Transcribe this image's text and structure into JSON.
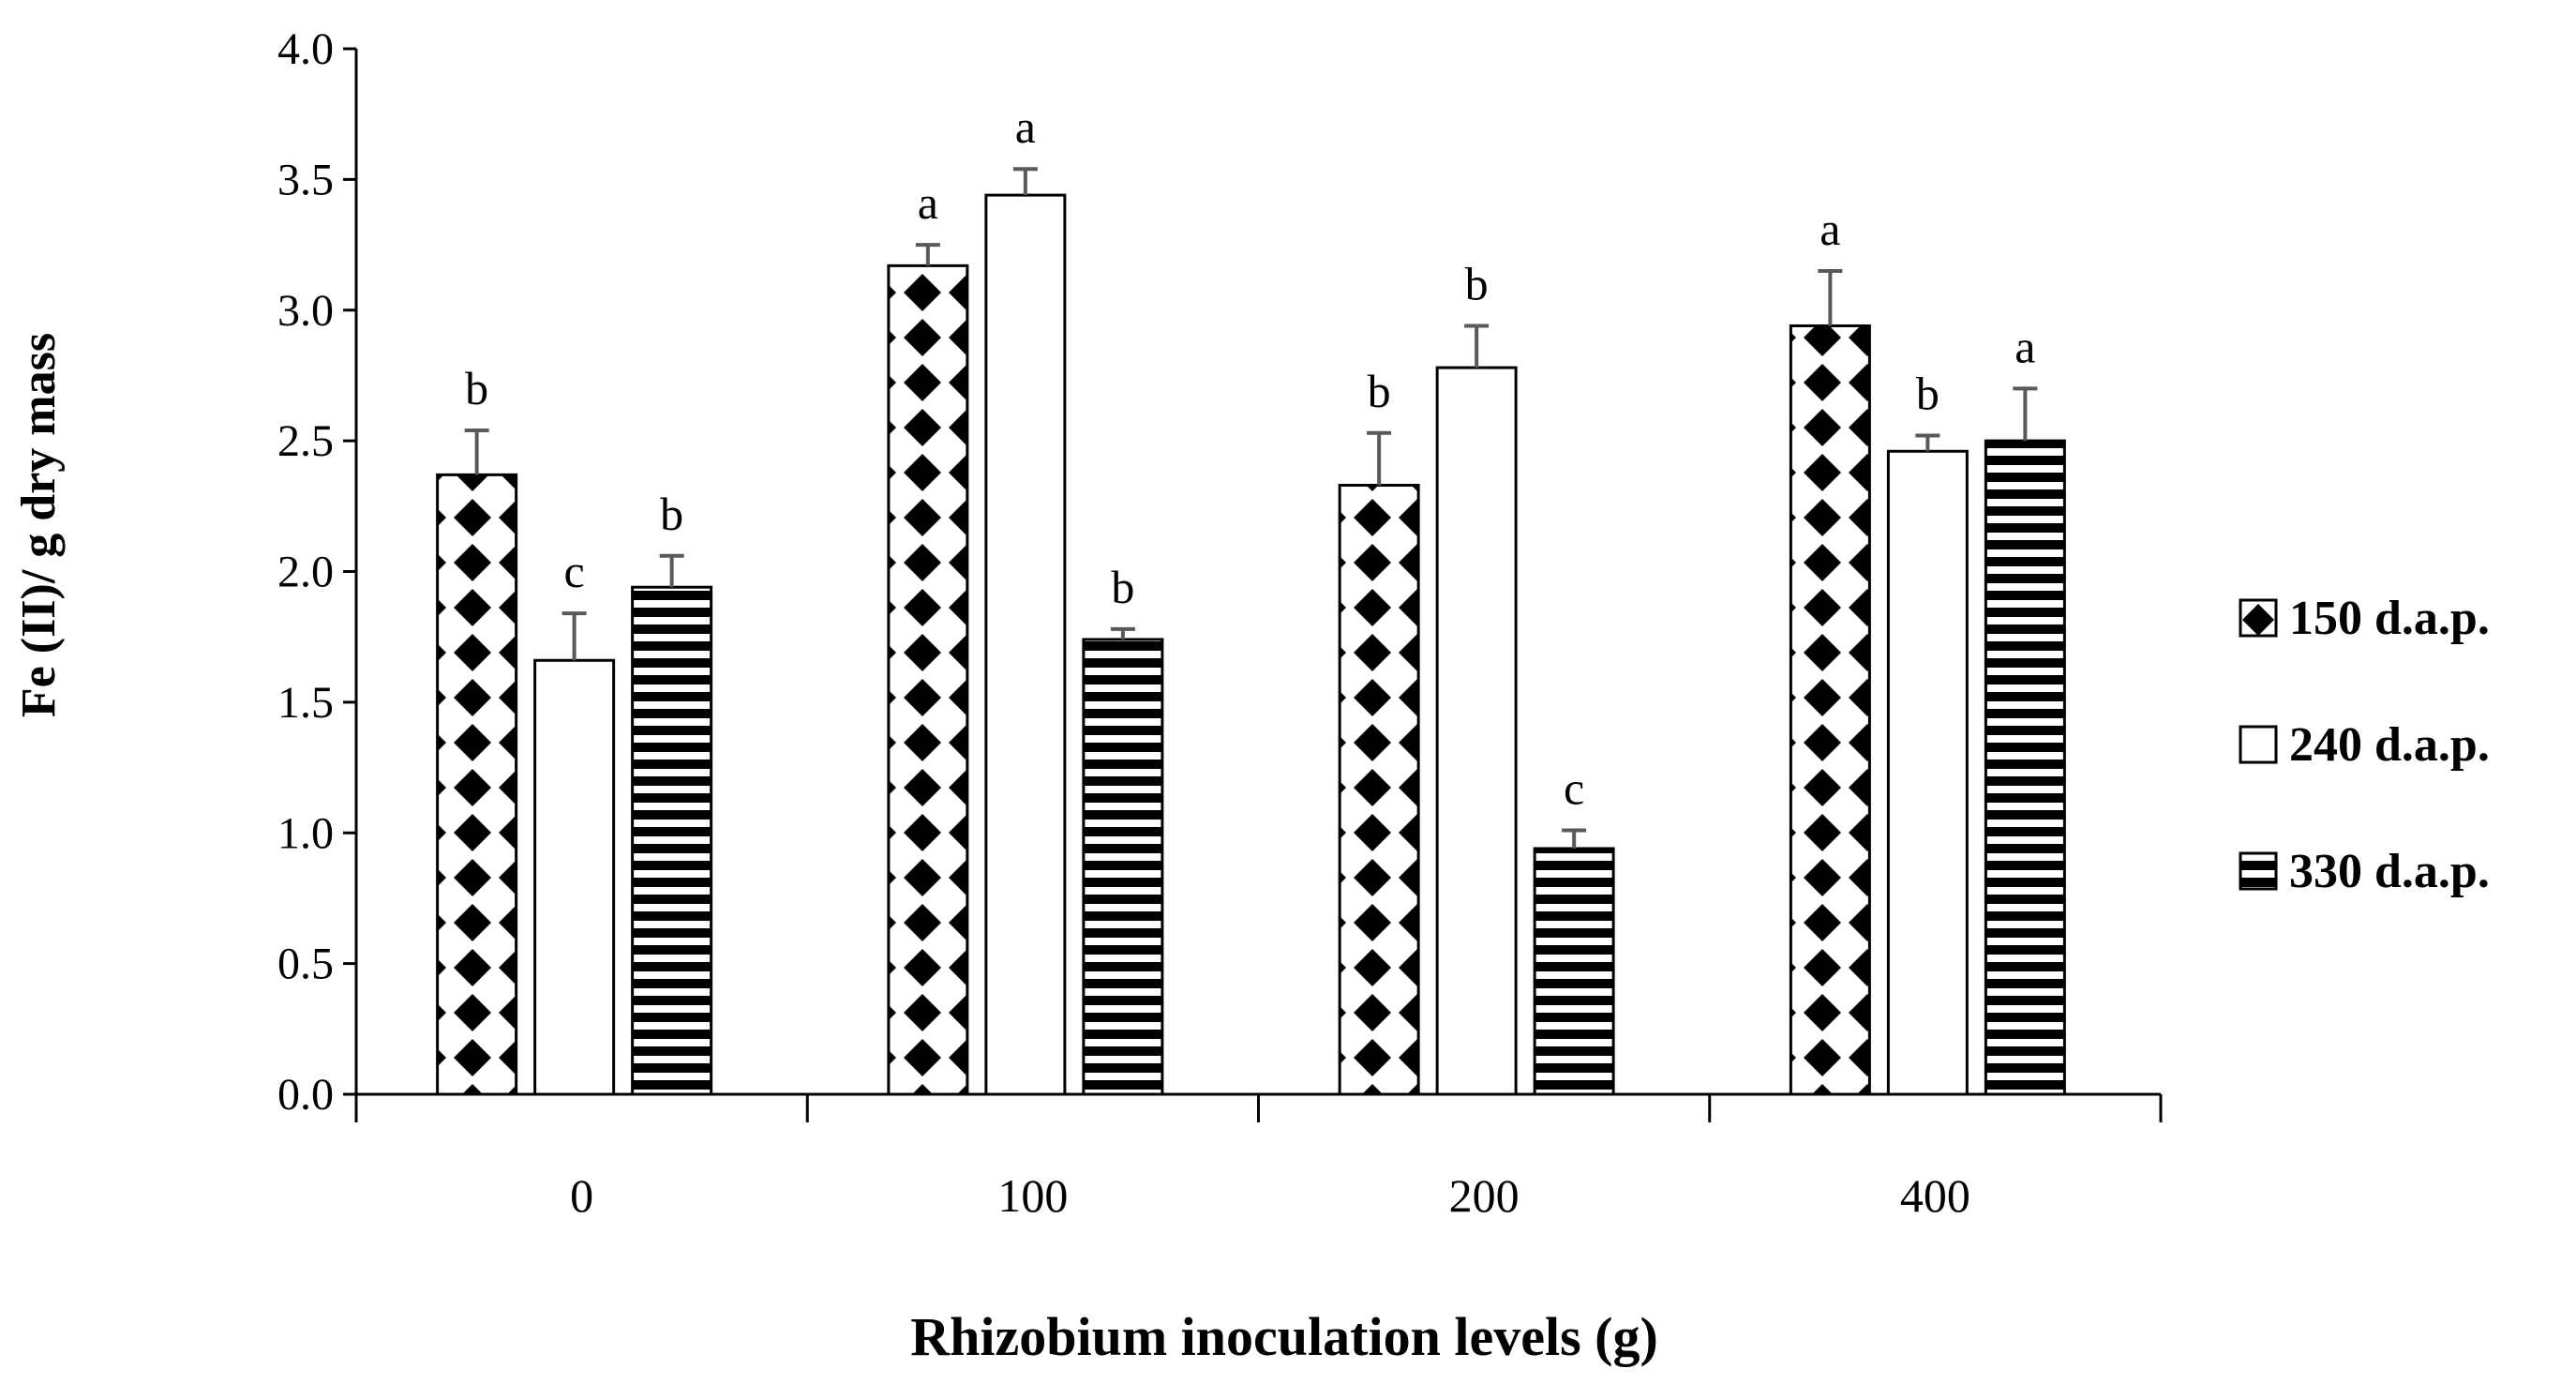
{
  "chart_data": {
    "type": "bar",
    "title": "",
    "xlabel": "Rhizobium inoculation levels (g)",
    "ylabel": "Fe (II)/ g dry mass",
    "ylim": [
      0,
      4.0
    ],
    "yticks": [
      "0.0",
      "0.5",
      "1.0",
      "1.5",
      "2.0",
      "2.5",
      "3.0",
      "3.5",
      "4.0"
    ],
    "categories": [
      "0",
      "100",
      "200",
      "400"
    ],
    "legend_position": "right",
    "series": [
      {
        "name": "150 d.a.p.",
        "pattern": "diamonds",
        "values": [
          2.37,
          3.17,
          2.33,
          2.94
        ],
        "errors": [
          0.17,
          0.08,
          0.2,
          0.21
        ],
        "letters": [
          "b",
          "a",
          "b",
          "a"
        ]
      },
      {
        "name": "240 d.a.p.",
        "pattern": "plain",
        "values": [
          1.66,
          3.44,
          2.78,
          2.46
        ],
        "errors": [
          0.18,
          0.1,
          0.16,
          0.06
        ],
        "letters": [
          "c",
          "a",
          "b",
          "b"
        ]
      },
      {
        "name": "330 d.a.p.",
        "pattern": "stripes",
        "values": [
          1.94,
          1.74,
          0.94,
          2.5
        ],
        "errors": [
          0.12,
          0.04,
          0.07,
          0.2
        ],
        "letters": [
          "b",
          "b",
          "c",
          "a"
        ]
      }
    ],
    "colors": {
      "bar_stroke": "#000000",
      "error_bar": "#595959",
      "axis": "#000000"
    }
  }
}
